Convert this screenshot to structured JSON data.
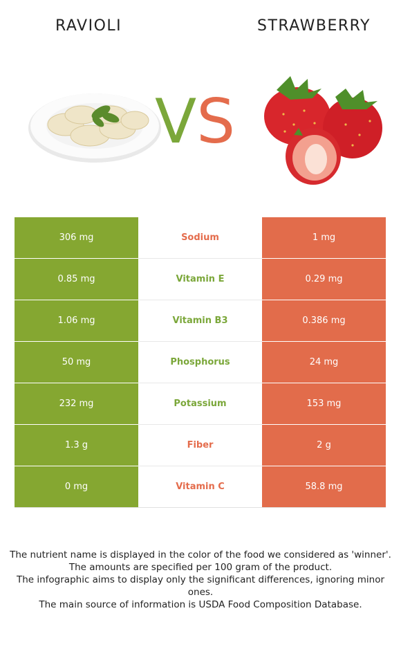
{
  "left_food": "RAVIOLI",
  "right_food": "STRAWBERRY",
  "vs_v": "V",
  "vs_s": "S",
  "colors": {
    "left": "#85a731",
    "right": "#e26c4b",
    "left_text": "#7ba73a",
    "right_text": "#e46c4c"
  },
  "rows": [
    {
      "left": "306 mg",
      "nutrient": "Sodium",
      "right": "1 mg",
      "winner": "right"
    },
    {
      "left": "0.85 mg",
      "nutrient": "Vitamin E",
      "right": "0.29 mg",
      "winner": "left"
    },
    {
      "left": "1.06 mg",
      "nutrient": "Vitamin B3",
      "right": "0.386 mg",
      "winner": "left"
    },
    {
      "left": "50 mg",
      "nutrient": "Phosphorus",
      "right": "24 mg",
      "winner": "left"
    },
    {
      "left": "232 mg",
      "nutrient": "Potassium",
      "right": "153 mg",
      "winner": "left"
    },
    {
      "left": "1.3 g",
      "nutrient": "Fiber",
      "right": "2 g",
      "winner": "right"
    },
    {
      "left": "0 mg",
      "nutrient": "Vitamin C",
      "right": "58.8 mg",
      "winner": "right"
    }
  ],
  "footnotes": [
    "The nutrient name is displayed in the color of the food we considered as 'winner'.",
    "The amounts are specified per 100 gram of the product.",
    "The infographic aims to display only the significant differences, ignoring minor ones.",
    "The main source of information is USDA Food Composition Database."
  ]
}
